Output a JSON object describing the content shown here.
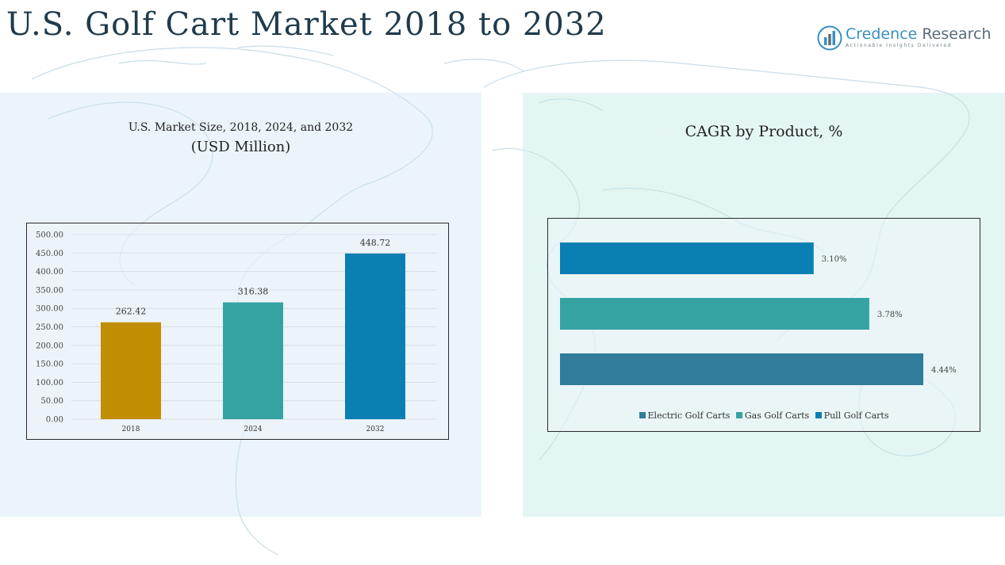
{
  "header": {
    "title": "U.S. Golf Cart Market 2018 to 2032",
    "logo_name_a": "Credence",
    "logo_name_b": "Research",
    "logo_tagline": "Actionable Insights Delivered"
  },
  "colors": {
    "brand_blue": "#3a8fc1",
    "bar_2018": "#c08e00",
    "bar_2024": "#36a3a3",
    "bar_2032": "#0a7fb4",
    "electric": "#317b9b",
    "gas": "#36a3a3",
    "pull": "#0a7fb4"
  },
  "chart_data": [
    {
      "type": "bar",
      "title": "U.S. Market Size, 2018, 2024, and 2032",
      "subtitle": "(USD Million)",
      "categories": [
        "2018",
        "2024",
        "2032"
      ],
      "values": [
        262.42,
        316.38,
        448.72
      ],
      "value_labels": [
        "262.42",
        "316.38",
        "448.72"
      ],
      "ylim": [
        0,
        500
      ],
      "yticks": [
        "0.00",
        "50.00",
        "100.00",
        "150.00",
        "200.00",
        "250.00",
        "300.00",
        "350.00",
        "400.00",
        "450.00",
        "500.00"
      ],
      "grid": true,
      "xlabel": "",
      "ylabel": ""
    },
    {
      "type": "bar",
      "orientation": "horizontal",
      "title": "CAGR by Product, %",
      "series": [
        {
          "name": "Pull Golf Carts",
          "value": 3.1,
          "label": "3.10%"
        },
        {
          "name": "Gas Golf Carts",
          "value": 3.78,
          "label": "3.78%"
        },
        {
          "name": "Electric Golf Carts",
          "value": 4.44,
          "label": "4.44%"
        }
      ],
      "legend": [
        "Electric Golf Carts",
        "Gas Golf Carts",
        "Pull Golf Carts"
      ],
      "legend_position": "bottom",
      "xlim": [
        0,
        4.44
      ],
      "grid": false
    }
  ]
}
